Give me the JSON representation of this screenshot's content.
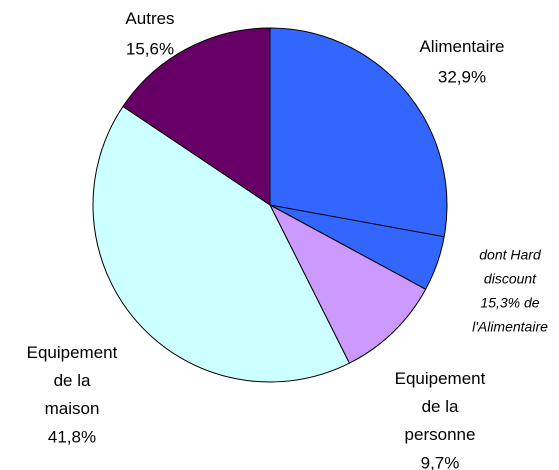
{
  "chart_data": {
    "type": "pie",
    "categories": [
      "Alimentaire",
      "Equipement de la personne",
      "Equipement de la maison",
      "Autres"
    ],
    "values": [
      32.9,
      9.7,
      41.8,
      15.6
    ],
    "value_labels": [
      "32,9%",
      "9,7%",
      "41,8%",
      "15,6%"
    ],
    "colors": [
      "#3366ff",
      "#cc99ff",
      "#ccffff",
      "#660066"
    ],
    "sub_share": 15.3,
    "annotation": [
      "dont Hard",
      "discount",
      "15,3% de",
      "l'Alimentaire"
    ]
  }
}
